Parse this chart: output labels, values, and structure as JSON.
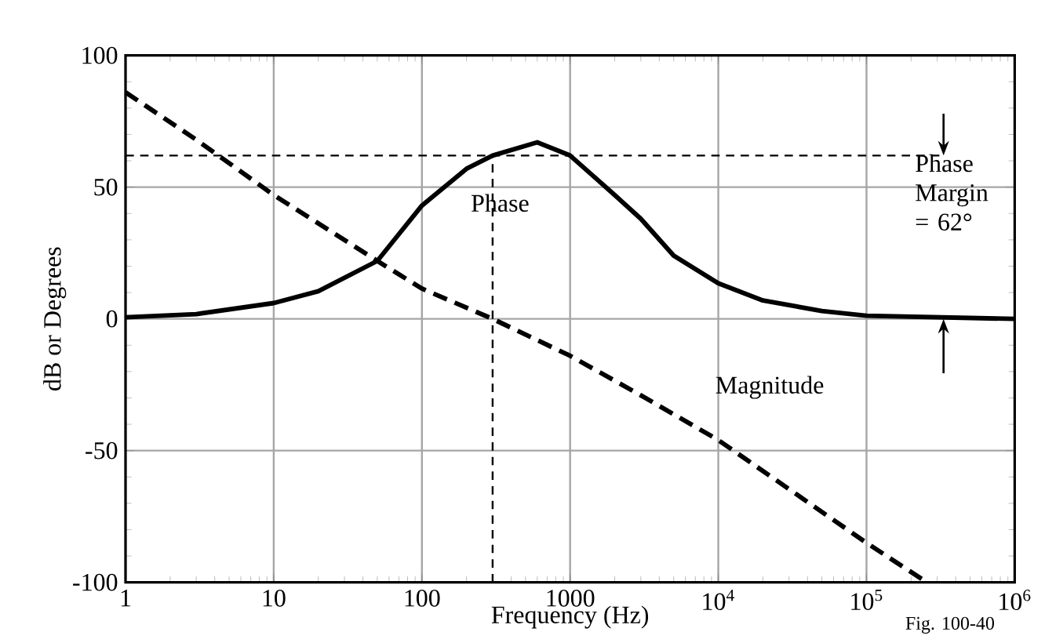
{
  "chart_data": {
    "type": "line",
    "xlabel": "Frequency (Hz)",
    "ylabel": "dB or Degrees",
    "log": "x",
    "grid": true,
    "xlim": [
      1,
      1000000
    ],
    "ylim": [
      -100,
      100
    ],
    "xticks": [
      1,
      10,
      100,
      1000,
      {
        "value": 10000,
        "label": "10$^{4}$"
      },
      {
        "value": 100000,
        "label": "10$^{5}$"
      },
      {
        "value": 1000000,
        "label": "10$^{6}$"
      }
    ],
    "yticks": [
      -100,
      -50,
      0,
      50,
      100
    ],
    "series": [
      {
        "name": "Phase",
        "color": "#000000",
        "line_style": "solid",
        "x": [
          1,
          3,
          10,
          20,
          50,
          100,
          200,
          300,
          600,
          1000,
          2000,
          3000,
          5000,
          10000,
          20000,
          50000,
          100000,
          1000000
        ],
        "values": [
          0.6,
          1.8,
          6,
          10.5,
          22,
          43,
          57,
          62,
          67,
          62,
          47,
          38,
          24,
          13.5,
          7,
          3,
          1.2,
          0
        ]
      },
      {
        "name": "Magnitude",
        "color": "#000000",
        "line_style": "dashed",
        "x": [
          1,
          3,
          10,
          50,
          100,
          300,
          1000,
          3000,
          10000,
          100000,
          240000
        ],
        "values": [
          86,
          68,
          47,
          22,
          11.5,
          0,
          -14,
          -29,
          -46,
          -85,
          -99
        ]
      }
    ],
    "ref_lines": [
      {
        "axis": "y",
        "value": 62,
        "line_style": "dashed"
      },
      {
        "axis": "x",
        "value": 300,
        "line_style": "dashed"
      }
    ],
    "annotations": [
      "Phase Margin = 62°",
      "Fig. 100-40"
    ]
  }
}
